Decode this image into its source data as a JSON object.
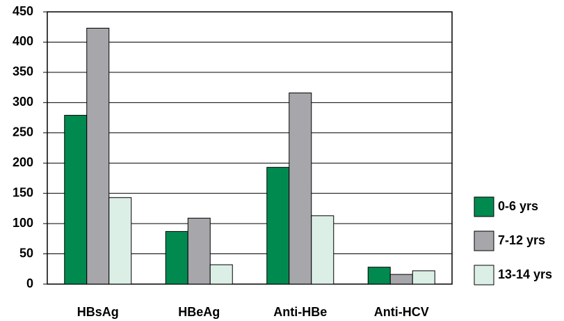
{
  "chart_data": {
    "type": "bar",
    "categories": [
      "HBsAg",
      "HBeAg",
      "Anti-HBe",
      "Anti-HCV"
    ],
    "series": [
      {
        "name": "0-6 yrs",
        "color": "#008a50",
        "values": [
          279,
          87,
          193,
          28
        ]
      },
      {
        "name": "7-12 yrs",
        "color": "#a6a6ab",
        "values": [
          423,
          109,
          316,
          16
        ]
      },
      {
        "name": "13-14 yrs",
        "color": "#dcefe6",
        "values": [
          143,
          32,
          113,
          22
        ]
      }
    ],
    "ylim": [
      0,
      450
    ],
    "yticks": [
      0,
      50,
      100,
      150,
      200,
      250,
      300,
      350,
      400,
      450
    ],
    "grid": true,
    "legend": "right"
  }
}
